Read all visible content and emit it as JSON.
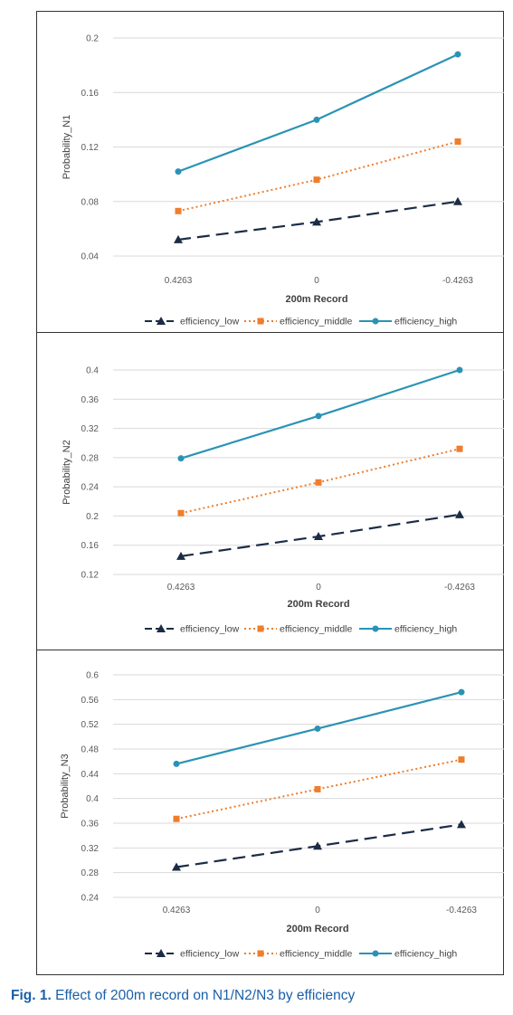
{
  "caption": {
    "label": "Fig. 1.",
    "text": "Effect of 200m record on N1/N2/N3 by efficiency"
  },
  "colors": {
    "efficiency_low": "#1b2c45",
    "efficiency_middle": "#ee7d2c",
    "efficiency_high": "#2a93b5"
  },
  "chart_data": [
    {
      "type": "line",
      "xlabel": "200m Record",
      "ylabel": "Probability_N1",
      "categories": [
        "0.4263",
        "0",
        "-0.4263"
      ],
      "ylim": [
        0.04,
        0.2
      ],
      "yticks": [
        0.04,
        0.08,
        0.12,
        0.16,
        0.2
      ],
      "ytick_labels": [
        "0.04",
        "0.08",
        "0.12",
        "0.16",
        "0.2"
      ],
      "grid": true,
      "legend": "bottom",
      "series": [
        {
          "name": "efficiency_low",
          "marker": "triangle",
          "dash": "long-dash",
          "values": [
            0.052,
            0.065,
            0.08
          ]
        },
        {
          "name": "efficiency_middle",
          "marker": "square",
          "dash": "dotted",
          "values": [
            0.073,
            0.096,
            0.124
          ]
        },
        {
          "name": "efficiency_high",
          "marker": "circle",
          "dash": "solid",
          "values": [
            0.102,
            0.14,
            0.188
          ]
        }
      ]
    },
    {
      "type": "line",
      "xlabel": "200m Record",
      "ylabel": "Probability_N2",
      "categories": [
        "0.4263",
        "0",
        "-0.4263"
      ],
      "ylim": [
        0.12,
        0.4
      ],
      "yticks": [
        0.12,
        0.16,
        0.2,
        0.24,
        0.28,
        0.32,
        0.36,
        0.4
      ],
      "ytick_labels": [
        "0.12",
        "0.16",
        "0.2",
        "0.24",
        "0.28",
        "0.32",
        "0.36",
        "0.4"
      ],
      "grid": true,
      "legend": "bottom",
      "series": [
        {
          "name": "efficiency_low",
          "marker": "triangle",
          "dash": "long-dash",
          "values": [
            0.145,
            0.172,
            0.202
          ]
        },
        {
          "name": "efficiency_middle",
          "marker": "square",
          "dash": "dotted",
          "values": [
            0.204,
            0.246,
            0.292
          ]
        },
        {
          "name": "efficiency_high",
          "marker": "circle",
          "dash": "solid",
          "values": [
            0.279,
            0.337,
            0.4
          ]
        }
      ]
    },
    {
      "type": "line",
      "xlabel": "200m Record",
      "ylabel": "Probability_N3",
      "categories": [
        "0.4263",
        "0",
        "-0.4263"
      ],
      "ylim": [
        0.24,
        0.6
      ],
      "yticks": [
        0.24,
        0.28,
        0.32,
        0.36,
        0.4,
        0.44,
        0.48,
        0.52,
        0.56,
        0.6
      ],
      "ytick_labels": [
        "0.24",
        "0.28",
        "0.32",
        "0.36",
        "0.4",
        "0.44",
        "0.48",
        "0.52",
        "0.56",
        "0.6"
      ],
      "grid": true,
      "legend": "bottom",
      "series": [
        {
          "name": "efficiency_low",
          "marker": "triangle",
          "dash": "long-dash",
          "values": [
            0.289,
            0.323,
            0.358
          ]
        },
        {
          "name": "efficiency_middle",
          "marker": "square",
          "dash": "dotted",
          "values": [
            0.367,
            0.415,
            0.463
          ]
        },
        {
          "name": "efficiency_high",
          "marker": "circle",
          "dash": "solid",
          "values": [
            0.456,
            0.513,
            0.572
          ]
        }
      ]
    }
  ]
}
